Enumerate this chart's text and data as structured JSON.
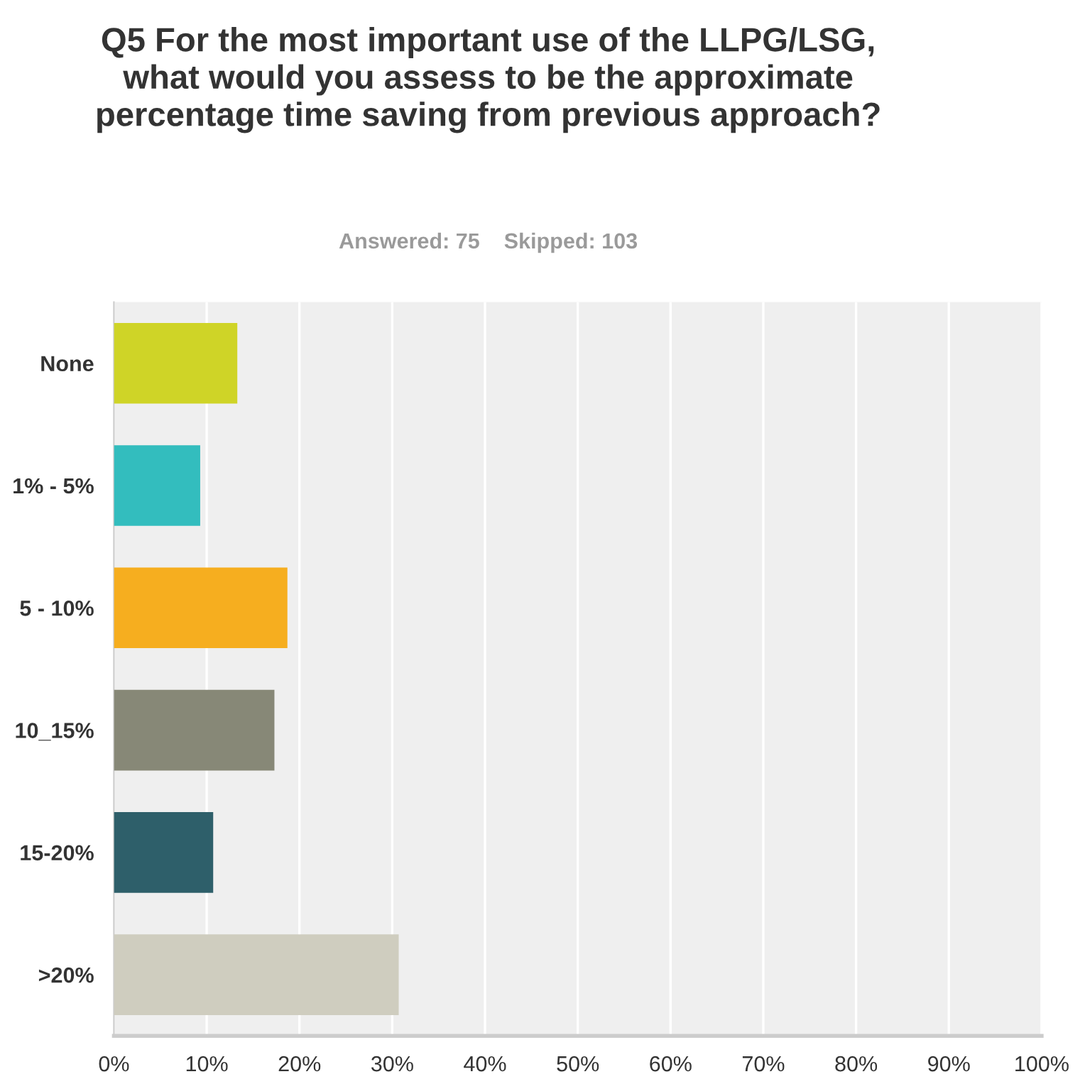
{
  "chart_data": {
    "type": "bar",
    "orientation": "horizontal",
    "title": "Q5 For the most important use of the LLPG/LSG, what would you assess to be the approximate percentage time saving from previous approach?",
    "subtitle": "Answered: 75    Skipped: 103",
    "categories": [
      "None",
      "1% - 5%",
      "5 - 10%",
      "10_15%",
      "15-20%",
      ">20%"
    ],
    "values": [
      13.3,
      9.3,
      18.7,
      17.3,
      10.7,
      30.7
    ],
    "colors": [
      "#cfd427",
      "#33bdbe",
      "#f6ae1f",
      "#878877",
      "#2e5f6a",
      "#cfcdbf"
    ],
    "xlim": [
      0,
      100
    ],
    "xticks": [
      {
        "value": 0,
        "label": "0%"
      },
      {
        "value": 10,
        "label": "10%"
      },
      {
        "value": 20,
        "label": "20%"
      },
      {
        "value": 30,
        "label": "30%"
      },
      {
        "value": 40,
        "label": "40%"
      },
      {
        "value": 50,
        "label": "50%"
      },
      {
        "value": 60,
        "label": "60%"
      },
      {
        "value": 70,
        "label": "70%"
      },
      {
        "value": 80,
        "label": "80%"
      },
      {
        "value": 90,
        "label": "90%"
      },
      {
        "value": 100,
        "label": "100%"
      }
    ],
    "grid": "x",
    "legend": false
  }
}
